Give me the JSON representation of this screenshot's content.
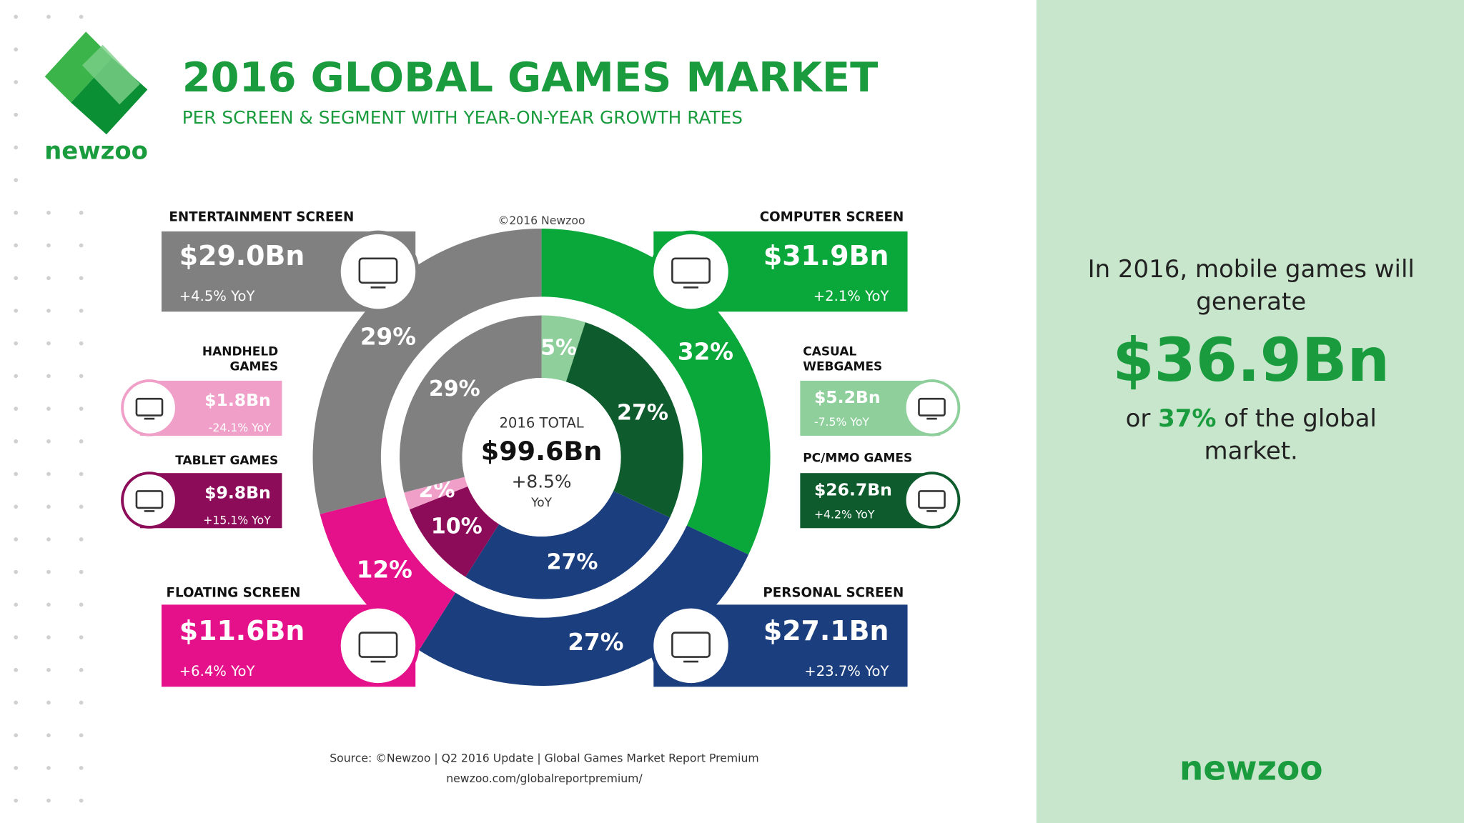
{
  "header": {
    "brand": "newzoo",
    "title": "2016 GLOBAL GAMES MARKET",
    "subtitle": "PER SCREEN & SEGMENT WITH YEAR-ON-YEAR GROWTH RATES",
    "copyright": "©2016 Newzoo"
  },
  "chart_data": [
    {
      "type": "donut",
      "categories": [
        "COMPUTER SCREEN",
        "PERSONAL SCREEN",
        "FLOATING SCREEN",
        "ENTERTAINMENT SCREEN"
      ],
      "values": [
        32,
        27,
        12,
        29
      ],
      "value_labels": [
        "32%",
        "27%",
        "12%",
        "29%"
      ],
      "colors": [
        "#0aa83a",
        "#1b3f7e",
        "#e5118a",
        "#808080"
      ],
      "amounts": [
        "$31.9Bn",
        "$27.1Bn",
        "$11.6Bn",
        "$29.0Bn"
      ],
      "growth": [
        "+2.1% YoY",
        "+23.7% YoY",
        "+6.4% YoY",
        "+4.5% YoY"
      ]
    },
    {
      "type": "donut",
      "categories": [
        "CASUAL WEBGAMES",
        "PC/MMO GAMES",
        null,
        "TABLET GAMES",
        "HANDHELD GAMES",
        null
      ],
      "values": [
        5,
        27,
        27,
        10,
        2,
        29
      ],
      "value_labels": [
        "5%",
        "27%",
        "27%",
        "10%",
        "2%",
        "29%"
      ],
      "colors": [
        "#8ecf9c",
        "#0e5c2d",
        "#1b3f7e",
        "#8c0c5a",
        "#f0a0c8",
        "#808080"
      ],
      "amounts": [
        "$5.2Bn",
        "$26.7Bn",
        null,
        "$9.8Bn",
        "$1.8Bn",
        null
      ],
      "growth": [
        "-7.5% YoY",
        "+4.2% YoY",
        null,
        "+15.1% YoY",
        "-24.1% YoY",
        null
      ]
    }
  ],
  "total": {
    "label": "2016 TOTAL",
    "amount": "$99.6Bn",
    "growth": "+8.5%",
    "unit": "YoY"
  },
  "sidebar": {
    "intro": "In 2016, mobile games will generate",
    "amount": "$36.9Bn",
    "share_prefix": "or",
    "share": "37%",
    "share_suffix": "of the global market.",
    "brand": "newzoo"
  },
  "source": {
    "line1": "Source: ©Newzoo | Q2 2016 Update | Global Games Market Report Premium",
    "line2": "newzoo.com/globalreportpremium/"
  }
}
